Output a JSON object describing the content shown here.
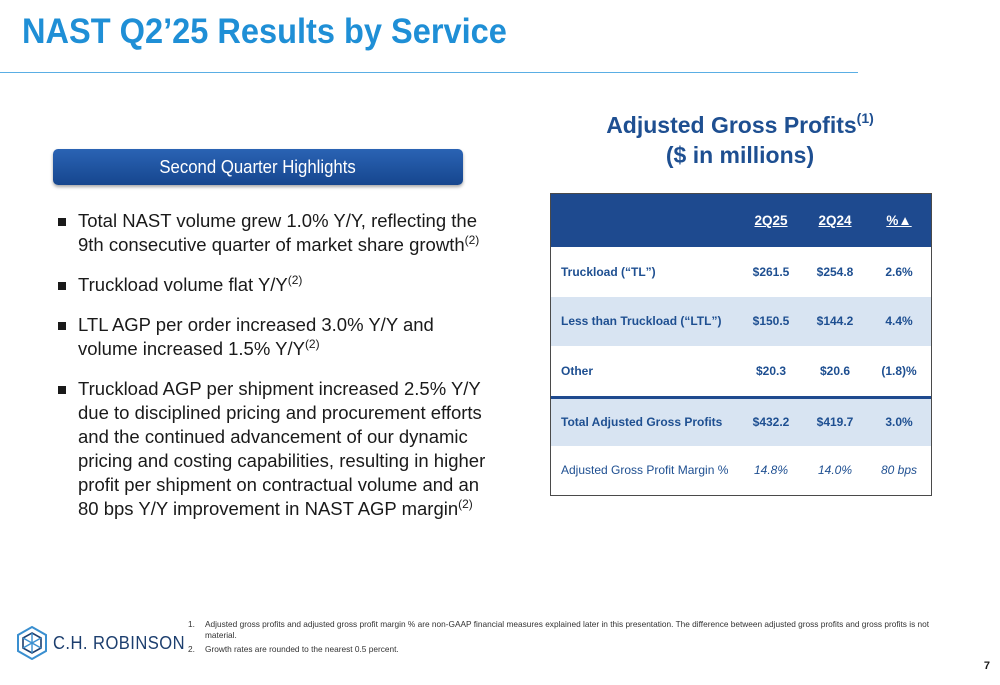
{
  "header": {
    "title": "NAST Q2’25 Results by Service"
  },
  "highlights": {
    "banner": "Second Quarter Highlights",
    "bullets": [
      {
        "text": "Total NAST volume grew 1.0% Y/Y, reflecting the 9th consecutive quarter of market share growth",
        "note": "(2)"
      },
      {
        "text": "Truckload volume flat Y/Y",
        "note": "(2)"
      },
      {
        "text": "LTL AGP per order increased 3.0% Y/Y and volume increased 1.5% Y/Y",
        "note": "(2)"
      },
      {
        "text": "Truckload AGP per shipment increased 2.5% Y/Y due to disciplined pricing and procurement efforts and the continued advancement of our dynamic pricing and costing capabilities, resulting in higher profit per shipment on contractual volume and an 80 bps Y/Y improvement in NAST AGP margin",
        "note": "(2)"
      }
    ]
  },
  "table": {
    "title_line1": "Adjusted Gross Profits",
    "title_note": "(1)",
    "title_line2": "($ in millions)",
    "headers": [
      "",
      "2Q25",
      "2Q24",
      "%▲"
    ],
    "rows": [
      {
        "label": "Truckload (“TL”)",
        "values": [
          "$261.5",
          "$254.8",
          "2.6%"
        ]
      },
      {
        "label": "Less than Truckload (“LTL”)",
        "values": [
          "$150.5",
          "$144.2",
          "4.4%"
        ]
      },
      {
        "label": "Other",
        "values": [
          "$20.3",
          "$20.6",
          "(1.8)%"
        ]
      },
      {
        "label": "Total Adjusted Gross Profits",
        "values": [
          "$432.2",
          "$419.7",
          "3.0%"
        ]
      },
      {
        "label": "Adjusted Gross Profit Margin %",
        "values": [
          "14.8%",
          "14.0%",
          "80 bps"
        ]
      }
    ]
  },
  "footnotes": [
    {
      "num": "1.",
      "text": "Adjusted gross profits and adjusted gross profit margin % are non-GAAP financial measures explained later in this presentation. The difference between adjusted gross profits and gross profits is not material."
    },
    {
      "num": "2.",
      "text": "Growth rates are rounded to the nearest 0.5 percent."
    }
  ],
  "logo": {
    "text": "C.H. ROBINSON",
    "icon": "chr-cube-logo-icon"
  },
  "page_number": "7",
  "colors": {
    "title_blue": "#1f8fd6",
    "navy": "#1e4a8f",
    "row_shade": "#d8e4f2"
  }
}
